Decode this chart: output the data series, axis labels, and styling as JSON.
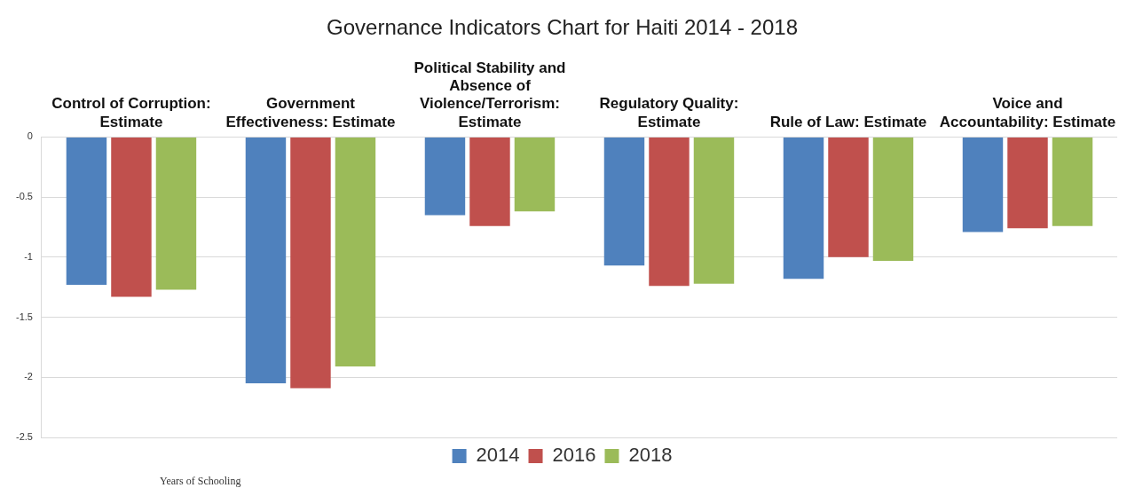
{
  "chart_data": {
    "type": "bar",
    "title": "Governance Indicators Chart for Haiti 2014 - 2018",
    "categories": [
      "Control of Corruption: Estimate",
      "Government Effectiveness: Estimate",
      "Political Stability and Absence of Violence/Terrorism: Estimate",
      "Regulatory Quality: Estimate",
      "Rule of Law: Estimate",
      "Voice and Accountability: Estimate"
    ],
    "series": [
      {
        "name": "2014",
        "color": "#4f81bd",
        "values": [
          -1.23,
          -2.05,
          -0.65,
          -1.07,
          -1.18,
          -0.79
        ]
      },
      {
        "name": "2016",
        "color": "#c0504d",
        "values": [
          -1.33,
          -2.09,
          -0.74,
          -1.24,
          -1.0,
          -0.76
        ]
      },
      {
        "name": "2018",
        "color": "#9bbb59",
        "values": [
          -1.27,
          -1.91,
          -0.62,
          -1.22,
          -1.03,
          -0.74
        ]
      }
    ],
    "ylim": [
      -2.5,
      0
    ],
    "yticks": [
      0,
      -0.5,
      -1,
      -1.5,
      -2,
      -2.5
    ],
    "grid": "y",
    "legend": "bottom",
    "annotations": [
      "Years of Schooling"
    ]
  }
}
